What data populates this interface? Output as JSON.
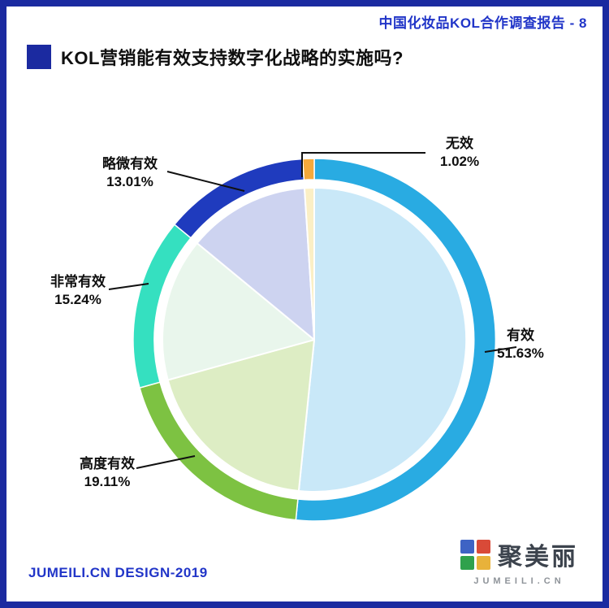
{
  "theme": {
    "accent": "#2135C8",
    "border": "#1B2AA0",
    "ink": "#101010",
    "logo_text": "#3C434D",
    "logo_gray": "#8E9399"
  },
  "header": {
    "report_title": "中国化妆品KOL合作调查报告 - 8"
  },
  "title": {
    "text": "KOL营销能有效支持数字化战略的实施吗?"
  },
  "chart_data": {
    "type": "pie",
    "title": "KOL营销能有效支持数字化战略的实施吗?",
    "unit": "%",
    "direction": "clockwise",
    "start_angle": "12-o'clock",
    "legend_position": "callout-labels",
    "segments": [
      {
        "label": "有效",
        "value": 51.63,
        "pct": "51.63%",
        "ring_color": "#29ABE2",
        "fill_color": "#C9E8F8"
      },
      {
        "label": "高度有效",
        "value": 19.11,
        "pct": "19.11%",
        "ring_color": "#7DC242",
        "fill_color": "#DDEDC4"
      },
      {
        "label": "非常有效",
        "value": 15.24,
        "pct": "15.24%",
        "ring_color": "#35E0C0",
        "fill_color": "#E9F6EC"
      },
      {
        "label": "略微有效",
        "value": 13.01,
        "pct": "13.01%",
        "ring_color": "#1F3BBE",
        "fill_color": "#CDD3F0"
      },
      {
        "label": "无效",
        "value": 1.02,
        "pct": "1.02%",
        "ring_color": "#F5A93B",
        "fill_color": "#FBEFC5"
      }
    ]
  },
  "footer": {
    "credit": "JUMEILI.CN DESIGN-2019",
    "logo_name": "聚美丽",
    "logo_site": "JUMEILI.CN",
    "logo_tile_colors": [
      "#3E63C4",
      "#D94A38",
      "#2FA14C",
      "#E8B23A"
    ]
  }
}
